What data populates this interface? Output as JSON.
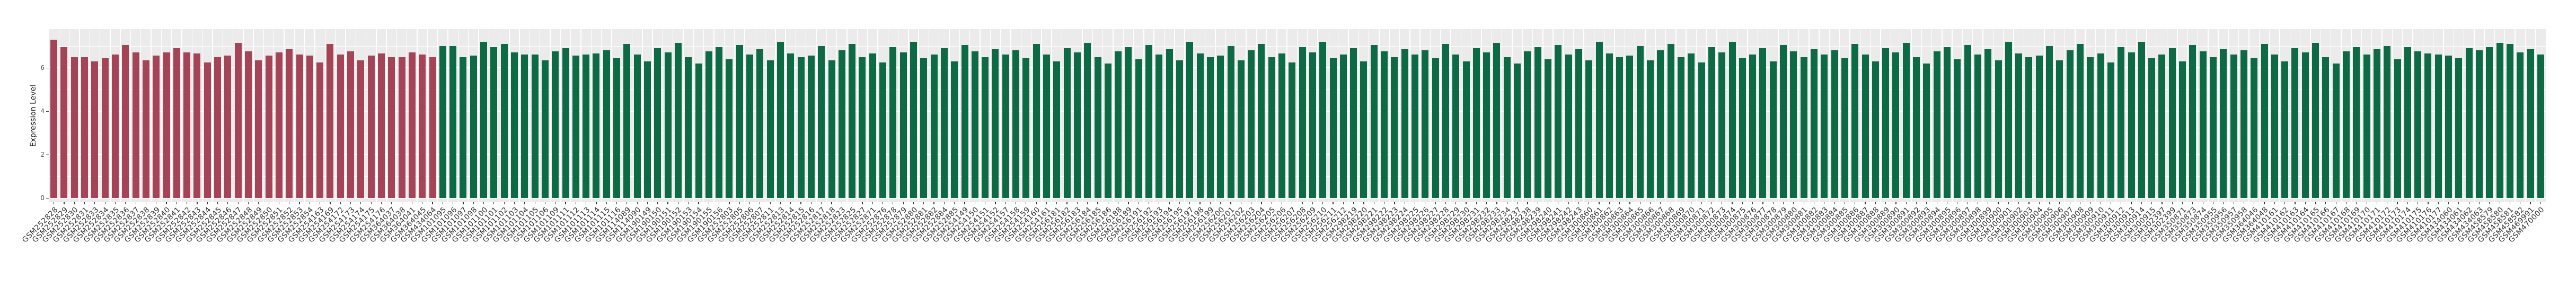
{
  "chart_data": {
    "type": "bar",
    "title": "",
    "xlabel": "",
    "ylabel": "Expression Level",
    "yticks": [
      0,
      2,
      4,
      6
    ],
    "yminor": [
      1,
      3,
      5,
      7
    ],
    "ylim": [
      0,
      7.8
    ],
    "grid": true,
    "legend_position": "none",
    "panel_bg": "#EBEBEB",
    "grid_color": "#FFFFFF",
    "axis_text_color": "#4D4D4D",
    "x_axis_labels_rotation_deg": 45,
    "groups": [
      {
        "name": "group-red",
        "color": "#A54457",
        "labels": [
          "GSM252828",
          "GSM252829",
          "GSM252830",
          "GSM252831",
          "GSM252833",
          "GSM252834",
          "GSM252835",
          "GSM252836",
          "GSM252837",
          "GSM252838",
          "GSM252839",
          "GSM252840",
          "GSM252841",
          "GSM252842",
          "GSM252843",
          "GSM252844",
          "GSM252845",
          "GSM252846",
          "GSM252847",
          "GSM252848",
          "GSM252849",
          "GSM252850",
          "GSM252851",
          "GSM252852",
          "GSM252853",
          "GSM252854",
          "GSM254163",
          "GSM254169",
          "GSM254172",
          "GSM254173",
          "GSM254174",
          "GSM254175",
          "GSM254176",
          "GSM364037",
          "GSM364038",
          "GSM364041",
          "GSM364045",
          "GSM434064"
        ],
        "values": [
          7.3,
          6.95,
          6.5,
          6.5,
          6.3,
          6.45,
          6.6,
          7.05,
          6.7,
          6.35,
          6.55,
          6.7,
          6.9,
          6.7,
          6.65,
          6.25,
          6.5,
          6.55,
          7.15,
          6.75,
          6.35,
          6.55,
          6.7,
          6.85,
          6.6,
          6.55,
          6.25,
          7.1,
          6.6,
          6.75,
          6.35,
          6.55,
          6.65,
          6.5,
          6.5,
          6.7,
          6.6,
          6.5
        ]
      },
      {
        "name": "group-green",
        "color": "#0C6B44",
        "labels": [
          "GSM101095",
          "GSM101096",
          "GSM101097",
          "GSM101098",
          "GSM101100",
          "GSM101101",
          "GSM101102",
          "GSM101103",
          "GSM101104",
          "GSM101105",
          "GSM101106",
          "GSM101109",
          "GSM101111",
          "GSM101112",
          "GSM101113",
          "GSM101114",
          "GSM101115",
          "GSM101116",
          "GSM114089",
          "GSM114090",
          "GSM190149",
          "GSM190150",
          "GSM190151",
          "GSM190152",
          "GSM190153",
          "GSM190154",
          "GSM190155",
          "GSM190156",
          "GSM252803",
          "GSM252805",
          "GSM252806",
          "GSM252807",
          "GSM252811",
          "GSM252813",
          "GSM252814",
          "GSM252815",
          "GSM252816",
          "GSM252817",
          "GSM252818",
          "GSM252823",
          "GSM252825",
          "GSM252827",
          "GSM252871",
          "GSM252876",
          "GSM252878",
          "GSM252879",
          "GSM252880",
          "GSM252881",
          "GSM252882",
          "GSM252884",
          "GSM252885",
          "GSM254149",
          "GSM254150",
          "GSM254151",
          "GSM254152",
          "GSM254157",
          "GSM254158",
          "GSM254159",
          "GSM254160",
          "GSM254161",
          "GSM256181",
          "GSM256182",
          "GSM256183",
          "GSM256184",
          "GSM256185",
          "GSM256186",
          "GSM256188",
          "GSM256189",
          "GSM256191",
          "GSM256192",
          "GSM256193",
          "GSM256194",
          "GSM256195",
          "GSM256197",
          "GSM256198",
          "GSM256199",
          "GSM256200",
          "GSM256201",
          "GSM256202",
          "GSM256203",
          "GSM256204",
          "GSM256205",
          "GSM256206",
          "GSM256207",
          "GSM256208",
          "GSM256209",
          "GSM256210",
          "GSM256211",
          "GSM256212",
          "GSM298219",
          "GSM298220",
          "GSM298221",
          "GSM298222",
          "GSM298223",
          "GSM298224",
          "GSM298225",
          "GSM298226",
          "GSM298227",
          "GSM298228",
          "GSM298229",
          "GSM298230",
          "GSM298231",
          "GSM298232",
          "GSM298233",
          "GSM298234",
          "GSM298237",
          "GSM298238",
          "GSM298239",
          "GSM298240",
          "GSM298241",
          "GSM298242",
          "GSM298243",
          "GSM300860",
          "GSM300861",
          "GSM300862",
          "GSM300863",
          "GSM300864",
          "GSM300865",
          "GSM300866",
          "GSM300867",
          "GSM300868",
          "GSM300869",
          "GSM300870",
          "GSM300871",
          "GSM300872",
          "GSM300873",
          "GSM300874",
          "GSM300875",
          "GSM300876",
          "GSM300877",
          "GSM300878",
          "GSM300879",
          "GSM300880",
          "GSM300881",
          "GSM300882",
          "GSM300883",
          "GSM300884",
          "GSM300885",
          "GSM300886",
          "GSM300887",
          "GSM300888",
          "GSM300889",
          "GSM300890",
          "GSM300891",
          "GSM300892",
          "GSM300893",
          "GSM300894",
          "GSM300895",
          "GSM300896",
          "GSM300897",
          "GSM300898",
          "GSM300899",
          "GSM300900",
          "GSM300901",
          "GSM300902",
          "GSM300903",
          "GSM300904",
          "GSM300905",
          "GSM300906",
          "GSM300907",
          "GSM300908",
          "GSM300909",
          "GSM300910",
          "GSM300911",
          "GSM300912",
          "GSM300913",
          "GSM300914",
          "GSM300915",
          "GSM302397",
          "GSM302399",
          "GSM350871",
          "GSM350873",
          "GSM350874",
          "GSM350955",
          "GSM350956",
          "GSM350957",
          "GSM350958",
          "GSM364046",
          "GSM364048",
          "GSM410161",
          "GSM410162",
          "GSM410163",
          "GSM410164",
          "GSM410165",
          "GSM410166",
          "GSM410167",
          "GSM410168",
          "GSM410169",
          "GSM410170",
          "GSM410171",
          "GSM410172",
          "GSM410173",
          "GSM410174",
          "GSM410175",
          "GSM410176",
          "GSM410177",
          "GSM434060",
          "GSM434061",
          "GSM434062",
          "GSM434063",
          "GSM458579",
          "GSM458580",
          "GSM458581",
          "GSM458582",
          "GSM469991",
          "GSM470000"
        ],
        "values": [
          7.0,
          7.0,
          6.5,
          6.55,
          7.2,
          6.95,
          7.1,
          6.7,
          6.6,
          6.6,
          6.35,
          6.75,
          6.9,
          6.55,
          6.6,
          6.65,
          6.8,
          6.45,
          7.1,
          6.6,
          6.3,
          6.9,
          6.7,
          7.15,
          6.5,
          6.2,
          6.75,
          6.95,
          6.4,
          7.05,
          6.6,
          6.85,
          6.35,
          7.2,
          6.65,
          6.5,
          6.55,
          7.0,
          6.35,
          6.8,
          7.1,
          6.5,
          6.65,
          6.25,
          6.95,
          6.7,
          7.2,
          6.45,
          6.6,
          6.9,
          6.3,
          7.05,
          6.75,
          6.5,
          6.85,
          6.6,
          6.8,
          6.45,
          7.1,
          6.6,
          6.3,
          6.9,
          6.7,
          7.15,
          6.5,
          6.2,
          6.75,
          6.95,
          6.4,
          7.05,
          6.6,
          6.85,
          6.35,
          7.2,
          6.65,
          6.5,
          6.55,
          7.0,
          6.35,
          6.8,
          7.1,
          6.5,
          6.65,
          6.25,
          6.95,
          6.7,
          7.2,
          6.45,
          6.6,
          6.9,
          6.3,
          7.05,
          6.75,
          6.5,
          6.85,
          6.6,
          6.8,
          6.45,
          7.1,
          6.6,
          6.3,
          6.9,
          6.7,
          7.15,
          6.5,
          6.2,
          6.75,
          6.95,
          6.4,
          7.05,
          6.6,
          6.85,
          6.35,
          7.2,
          6.65,
          6.5,
          6.55,
          7.0,
          6.35,
          6.8,
          7.1,
          6.5,
          6.65,
          6.25,
          6.95,
          6.7,
          7.2,
          6.45,
          6.6,
          6.9,
          6.3,
          7.05,
          6.75,
          6.5,
          6.85,
          6.6,
          6.8,
          6.45,
          7.1,
          6.6,
          6.3,
          6.9,
          6.7,
          7.15,
          6.5,
          6.2,
          6.75,
          6.95,
          6.4,
          7.05,
          6.6,
          6.85,
          6.35,
          7.2,
          6.65,
          6.5,
          6.55,
          7.0,
          6.35,
          6.8,
          7.1,
          6.5,
          6.65,
          6.25,
          6.95,
          6.7,
          7.2,
          6.45,
          6.6,
          6.9,
          6.3,
          7.05,
          6.75,
          6.5,
          6.85,
          6.6,
          6.8,
          6.45,
          7.1,
          6.6,
          6.3,
          6.9,
          6.7,
          7.15,
          6.5,
          6.2,
          6.75,
          6.95,
          6.6,
          6.85,
          7.0,
          6.4,
          6.95,
          6.75,
          6.65,
          6.6,
          6.55,
          6.45,
          6.9,
          6.8,
          6.95,
          7.15,
          7.1,
          6.7,
          6.85,
          6.6
        ]
      }
    ]
  }
}
